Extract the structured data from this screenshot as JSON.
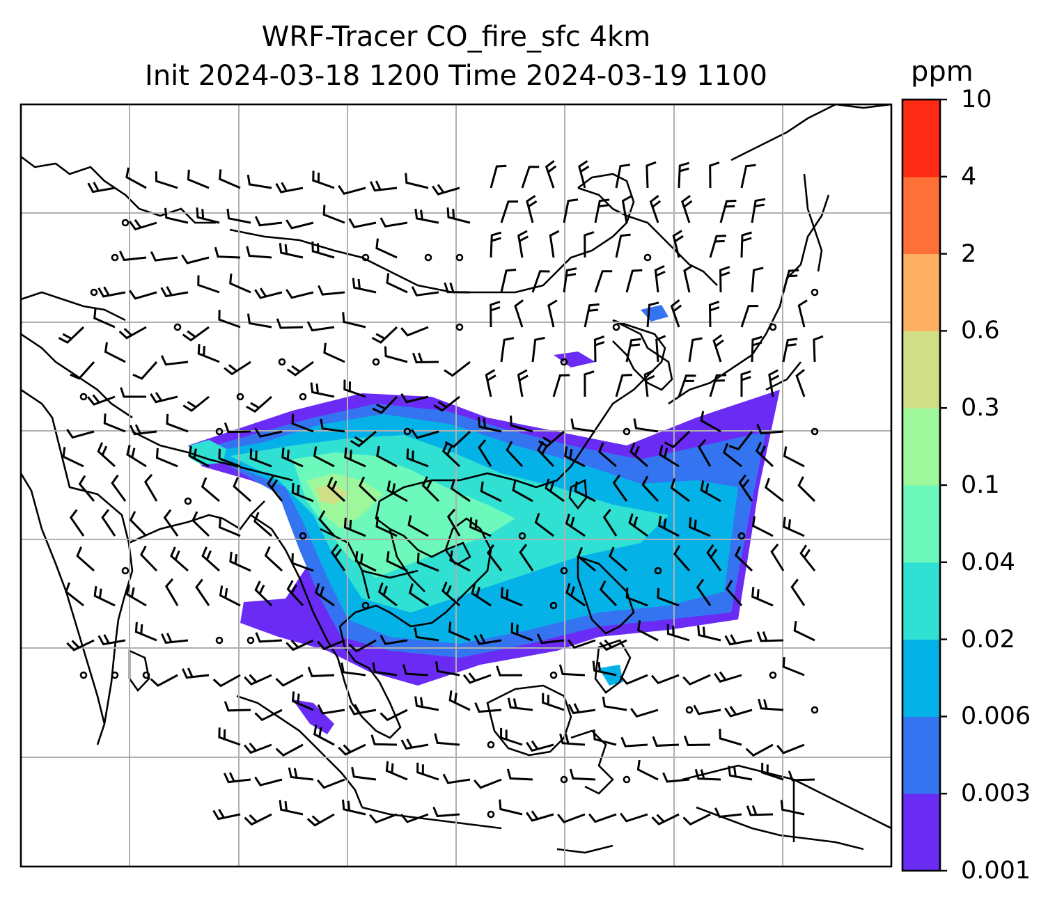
{
  "title": {
    "line1": "WRF-Tracer CO_fire_sfc 4km",
    "line2": "Init 2024-03-18 1200 Time 2024-03-19 1100"
  },
  "colorbar": {
    "unit": "ppm",
    "levels": [
      "0.001",
      "0.003",
      "0.006",
      "0.02",
      "0.04",
      "0.1",
      "0.3",
      "0.6",
      "2",
      "4",
      "10"
    ],
    "colors": [
      "#6a2bf5",
      "#3574f0",
      "#05b2e8",
      "#2fe0d3",
      "#6cf9bb",
      "#9df89b",
      "#d0df86",
      "#fdaf62",
      "#ff7038",
      "#ff2a16"
    ]
  },
  "map": {
    "variable": "CO_fire_sfc",
    "overlay": "wind barbs",
    "gridlines": true
  }
}
